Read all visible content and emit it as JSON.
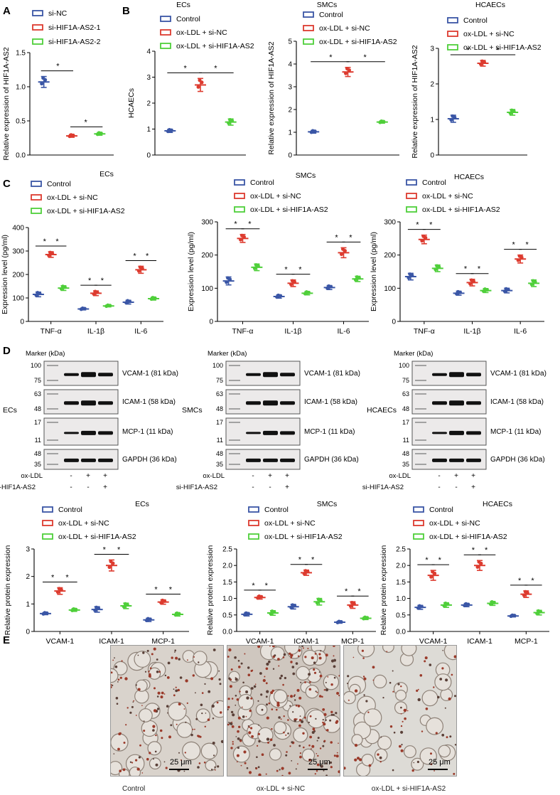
{
  "panel_labels": {
    "a": "A",
    "b": "B",
    "c": "C",
    "d": "D",
    "e": "E"
  },
  "colors": {
    "blue": "#3a56a6",
    "red": "#dd3b2f",
    "green": "#4fcf3a"
  },
  "legends": {
    "control": "Control",
    "oxnc": "ox-LDL + si-NC",
    "oxsi": "ox-LDL + si-HIF1A-AS2",
    "sinc": "si-NC",
    "si1": "si-HIF1A-AS2-1",
    "si2": "si-HIF1A-AS2-2"
  },
  "star": "*",
  "chart_data": [
    {
      "id": "A",
      "type": "scatter",
      "title": "",
      "ylabel": "Relative expression of HIF1A-AS2",
      "ylim": [
        0,
        1.5
      ],
      "yticks": [
        "0.0",
        "0.5",
        "1.0",
        "1.5"
      ],
      "categories": [
        "si-NC",
        "si-HIF1A-AS2-1",
        "si-HIF1A-AS2-2"
      ],
      "series": [
        {
          "name": "si-NC",
          "values": [
            1.07
          ],
          "sd": [
            0.08
          ]
        },
        {
          "name": "si-HIF1A-AS2-1",
          "values": [
            0.28
          ],
          "sd": [
            0.02
          ]
        },
        {
          "name": "si-HIF1A-AS2-2",
          "values": [
            0.31
          ],
          "sd": [
            0.02
          ]
        }
      ]
    },
    {
      "id": "B1",
      "type": "scatter",
      "title": "ECs",
      "ylabel": "HCAECs",
      "ylim": [
        0,
        4
      ],
      "yticks": [
        "0",
        "1",
        "2",
        "3",
        "4"
      ],
      "categories": [
        "Control",
        "ox-LDL + si-NC",
        "ox-LDL + si-HIF1A-AS2"
      ],
      "series": [
        {
          "name": "Control",
          "values": [
            0.93
          ],
          "sd": [
            0.06
          ]
        },
        {
          "name": "ox-LDL + si-NC",
          "values": [
            2.7
          ],
          "sd": [
            0.25
          ]
        },
        {
          "name": "ox-LDL + si-HIF1A-AS2",
          "values": [
            1.27
          ],
          "sd": [
            0.12
          ]
        }
      ]
    },
    {
      "id": "B2",
      "type": "scatter",
      "title": "SMCs",
      "ylabel": "Relative expression of HIF1A-AS2",
      "ylim": [
        0,
        5
      ],
      "yticks": [
        "0",
        "1",
        "2",
        "3",
        "4",
        "5"
      ],
      "categories": [
        "Control",
        "ox-LDL + si-NC",
        "ox-LDL + si-HIF1A-AS2"
      ],
      "series": [
        {
          "name": "Control",
          "values": [
            1.02
          ],
          "sd": [
            0.06
          ]
        },
        {
          "name": "ox-LDL + si-NC",
          "values": [
            3.65
          ],
          "sd": [
            0.2
          ]
        },
        {
          "name": "ox-LDL + si-HIF1A-AS2",
          "values": [
            1.45
          ],
          "sd": [
            0.05
          ]
        }
      ]
    },
    {
      "id": "B3",
      "type": "scatter",
      "title": "HCAECs",
      "ylabel": "Relative expression of HIF1A-AS2",
      "ylim": [
        0,
        3
      ],
      "yticks": [
        "0",
        "1",
        "2",
        "3"
      ],
      "categories": [
        "Control",
        "ox-LDL + si-NC",
        "ox-LDL + si-HIF1A-AS2"
      ],
      "series": [
        {
          "name": "Control",
          "values": [
            1.02
          ],
          "sd": [
            0.1
          ]
        },
        {
          "name": "ox-LDL + si-NC",
          "values": [
            2.58
          ],
          "sd": [
            0.08
          ]
        },
        {
          "name": "ox-LDL + si-HIF1A-AS2",
          "values": [
            1.2
          ],
          "sd": [
            0.08
          ]
        }
      ]
    },
    {
      "id": "C1",
      "type": "scatter",
      "title": "ECs",
      "ylabel": "Expression level (pg/ml)",
      "ylim": [
        0,
        400
      ],
      "yticks": [
        "0",
        "100",
        "200",
        "300",
        "400"
      ],
      "categories": [
        "TNF-α",
        "IL-1β",
        "IL-6"
      ],
      "series": [
        {
          "name": "Control",
          "values": [
            115,
            53,
            82
          ],
          "sd": [
            10,
            4,
            8
          ]
        },
        {
          "name": "ox-LDL + si-NC",
          "values": [
            285,
            120,
            220
          ],
          "sd": [
            12,
            10,
            15
          ]
        },
        {
          "name": "ox-LDL + si-HIF1A-AS2",
          "values": [
            142,
            66,
            97
          ],
          "sd": [
            10,
            4,
            6
          ]
        }
      ]
    },
    {
      "id": "C2",
      "type": "scatter",
      "title": "SMCs",
      "ylabel": "Expression level (pg/ml)",
      "ylim": [
        0,
        300
      ],
      "yticks": [
        "0",
        "100",
        "200",
        "300"
      ],
      "categories": [
        "TNF-α",
        "IL-1β",
        "IL-6"
      ],
      "series": [
        {
          "name": "Control",
          "values": [
            122,
            75,
            102
          ],
          "sd": [
            12,
            5,
            6
          ]
        },
        {
          "name": "ox-LDL + si-NC",
          "values": [
            250,
            115,
            207
          ],
          "sd": [
            12,
            10,
            15
          ]
        },
        {
          "name": "ox-LDL + si-HIF1A-AS2",
          "values": [
            163,
            85,
            128
          ],
          "sd": [
            10,
            5,
            8
          ]
        }
      ]
    },
    {
      "id": "C3",
      "type": "scatter",
      "title": "HCAECs",
      "ylabel": "Expression level (pg/ml)",
      "ylim": [
        0,
        300
      ],
      "yticks": [
        "0",
        "100",
        "200",
        "300"
      ],
      "categories": [
        "TNF-α",
        "IL-1β",
        "IL-6"
      ],
      "series": [
        {
          "name": "Control",
          "values": [
            135,
            85,
            93
          ],
          "sd": [
            10,
            6,
            7
          ]
        },
        {
          "name": "ox-LDL + si-NC",
          "values": [
            247,
            117,
            188
          ],
          "sd": [
            13,
            10,
            12
          ]
        },
        {
          "name": "ox-LDL + si-HIF1A-AS2",
          "values": [
            160,
            93,
            115
          ],
          "sd": [
            10,
            6,
            10
          ]
        }
      ]
    },
    {
      "id": "D1",
      "type": "scatter",
      "title": "ECs",
      "ylabel": "Relative protein expression",
      "ylim": [
        0,
        3
      ],
      "yticks": [
        "0",
        "1",
        "2",
        "3"
      ],
      "categories": [
        "VCAM-1",
        "ICAM-1",
        "MCP-1"
      ],
      "series": [
        {
          "name": "Control",
          "values": [
            0.65,
            0.8,
            0.42
          ],
          "sd": [
            0.04,
            0.1,
            0.06
          ]
        },
        {
          "name": "ox-LDL + si-NC",
          "values": [
            1.47,
            2.4,
            1.07
          ],
          "sd": [
            0.12,
            0.2,
            0.08
          ]
        },
        {
          "name": "ox-LDL + si-HIF1A-AS2",
          "values": [
            0.78,
            0.93,
            0.62
          ],
          "sd": [
            0.05,
            0.1,
            0.06
          ]
        }
      ]
    },
    {
      "id": "D2",
      "type": "scatter",
      "title": "SMCs",
      "ylabel": "Relative protein expression",
      "ylim": [
        0,
        2.5
      ],
      "yticks": [
        "0.0",
        "0.5",
        "1.0",
        "1.5",
        "2.0",
        "2.5"
      ],
      "categories": [
        "VCAM-1",
        "ICAM-1",
        "MCP-1"
      ],
      "series": [
        {
          "name": "Control",
          "values": [
            0.52,
            0.75,
            0.28
          ],
          "sd": [
            0.05,
            0.07,
            0.03
          ]
        },
        {
          "name": "ox-LDL + si-NC",
          "values": [
            1.03,
            1.78,
            0.8
          ],
          "sd": [
            0.05,
            0.08,
            0.1
          ]
        },
        {
          "name": "ox-LDL + si-HIF1A-AS2",
          "values": [
            0.56,
            0.9,
            0.4
          ],
          "sd": [
            0.07,
            0.1,
            0.04
          ]
        }
      ]
    },
    {
      "id": "D3",
      "type": "scatter",
      "title": "HCAECs",
      "ylabel": "Relative protein expression",
      "ylim": [
        0,
        2.5
      ],
      "yticks": [
        "0.0",
        "0.5",
        "1.0",
        "1.5",
        "2.0",
        "2.5"
      ],
      "categories": [
        "VCAM-1",
        "ICAM-1",
        "MCP-1"
      ],
      "series": [
        {
          "name": "Control",
          "values": [
            0.73,
            0.8,
            0.47
          ],
          "sd": [
            0.06,
            0.05,
            0.03
          ]
        },
        {
          "name": "ox-LDL + si-NC",
          "values": [
            1.7,
            2.0,
            1.13
          ],
          "sd": [
            0.15,
            0.15,
            0.1
          ]
        },
        {
          "name": "ox-LDL + si-HIF1A-AS2",
          "values": [
            0.8,
            0.85,
            0.57
          ],
          "sd": [
            0.07,
            0.06,
            0.07
          ]
        }
      ]
    }
  ],
  "western": {
    "marker_label": "Marker (kDa)",
    "side_labels": [
      "ECs",
      "SMCs",
      "HCAECs"
    ],
    "marker_values": [
      "100",
      "75",
      "63",
      "48",
      "17",
      "11",
      "48",
      "35"
    ],
    "bands": [
      "VCAM-1 (81 kDa)",
      "ICAM-1 (58 kDa)",
      "MCP-1 (11 kDa)",
      "GAPDH (36 kDa)"
    ],
    "row1_label": "ox-LDL",
    "row2_label": "si-HIF1A-AS2",
    "row1_signs": [
      "-",
      "+",
      "+"
    ],
    "row2_signs": [
      "-",
      "-",
      "+"
    ]
  },
  "micro": {
    "scale": "25 μm",
    "captions": [
      "Control",
      "ox-LDL + si-NC",
      "ox-LDL + si-HIF1A-AS2"
    ]
  }
}
